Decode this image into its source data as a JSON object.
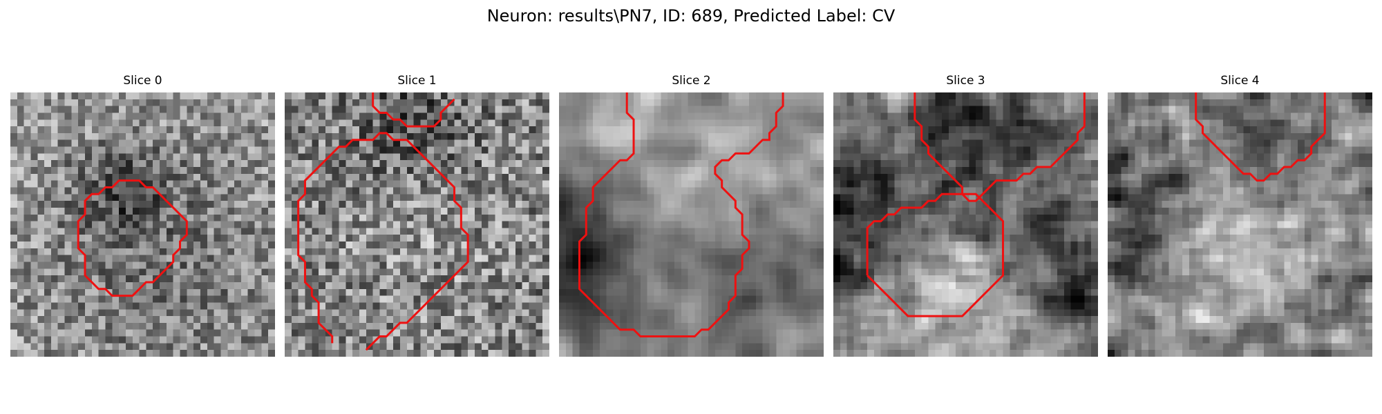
{
  "figure": {
    "suptitle": "Neuron: results\\PN7, ID: 689, Predicted Label: CV",
    "colormap": "gray",
    "contour_color": "#ee1111",
    "panels": [
      {
        "title": "Slice 0",
        "contours": [
          [
            [
              11.5,
              27.5
            ],
            [
              10.5,
              26.5
            ],
            [
              10.5,
              23.5
            ],
            [
              9.5,
              22.5
            ],
            [
              9.5,
              18.5
            ],
            [
              10.5,
              17.5
            ],
            [
              10.5,
              15.5
            ],
            [
              11.5,
              14.5
            ],
            [
              12.5,
              14.5
            ],
            [
              13.5,
              13.5
            ],
            [
              14.5,
              13.5
            ],
            [
              15.5,
              12.5
            ],
            [
              18.5,
              12.5
            ],
            [
              19.5,
              13.5
            ],
            [
              20.5,
              13.5
            ],
            [
              21.5,
              14.5
            ],
            [
              22.5,
              15.5
            ],
            [
              23.5,
              16.5
            ],
            [
              24.5,
              17.5
            ],
            [
              25.5,
              18.5
            ],
            [
              25.5,
              20.5
            ],
            [
              24.5,
              21.5
            ],
            [
              24.5,
              22.5
            ],
            [
              23.5,
              23.5
            ],
            [
              23.5,
              24.5
            ],
            [
              22.5,
              25.5
            ],
            [
              21.5,
              26.5
            ],
            [
              20.5,
              27.5
            ],
            [
              19.5,
              27.5
            ],
            [
              18.5,
              28.5
            ],
            [
              17.5,
              29.5
            ],
            [
              14.5,
              29.5
            ],
            [
              13.5,
              28.5
            ],
            [
              12.5,
              28.5
            ],
            [
              11.5,
              27.5
            ]
          ]
        ]
      },
      {
        "title": "Slice 1",
        "contours": [
          [
            [
              6.5,
              36.5
            ],
            [
              6.5,
              35.5
            ],
            [
              5.5,
              34.5
            ],
            [
              4.5,
              33.5
            ],
            [
              4.5,
              30.5
            ],
            [
              3.5,
              29.5
            ],
            [
              3.5,
              28.5
            ],
            [
              2.5,
              27.5
            ],
            [
              2.5,
              24.5
            ],
            [
              1.5,
              23.5
            ],
            [
              1.5,
              15.5
            ],
            [
              2.5,
              14.5
            ],
            [
              2.5,
              12.5
            ],
            [
              3.5,
              11.5
            ],
            [
              4.5,
              10.5
            ],
            [
              5.5,
              9.5
            ],
            [
              6.5,
              8.5
            ],
            [
              7.5,
              7.5
            ],
            [
              8.5,
              7.5
            ],
            [
              9.5,
              6.5
            ],
            [
              12.5,
              6.5
            ],
            [
              13.5,
              5.5
            ],
            [
              14.5,
              5.5
            ],
            [
              15.5,
              6.5
            ],
            [
              17.5,
              6.5
            ],
            [
              18.5,
              7.5
            ],
            [
              19.5,
              8.5
            ],
            [
              20.5,
              9.5
            ],
            [
              21.5,
              10.5
            ],
            [
              22.5,
              11.5
            ],
            [
              23.5,
              12.5
            ],
            [
              24.5,
              13.5
            ],
            [
              24.5,
              15.5
            ],
            [
              25.5,
              16.5
            ],
            [
              25.5,
              19.5
            ],
            [
              26.5,
              20.5
            ],
            [
              26.5,
              24.5
            ],
            [
              25.5,
              25.5
            ],
            [
              24.5,
              26.5
            ],
            [
              23.5,
              27.5
            ],
            [
              22.5,
              28.5
            ],
            [
              21.5,
              29.5
            ],
            [
              20.5,
              30.5
            ],
            [
              19.5,
              31.5
            ],
            [
              18.5,
              32.5
            ],
            [
              17.5,
              33.5
            ],
            [
              16.5,
              33.5
            ],
            [
              15.5,
              34.5
            ],
            [
              14.5,
              35.5
            ],
            [
              13.5,
              35.5
            ],
            [
              12.5,
              36.5
            ],
            [
              11.5,
              37.5
            ]
          ],
          [
            [
              12.5,
              -0.5
            ],
            [
              12.5,
              1.5
            ],
            [
              13.5,
              2.5
            ],
            [
              14.5,
              2.5
            ],
            [
              15.5,
              3.5
            ],
            [
              16.5,
              3.5
            ],
            [
              17.5,
              4.5
            ],
            [
              21.5,
              4.5
            ],
            [
              22.5,
              3.5
            ],
            [
              22.5,
              2.5
            ],
            [
              23.5,
              1.5
            ],
            [
              24.5,
              0.5
            ]
          ]
        ]
      },
      {
        "title": "Slice 2",
        "contours": [
          [
            [
              9.5,
              -0.5
            ],
            [
              9.5,
              2.5
            ],
            [
              10.5,
              3.5
            ],
            [
              10.5,
              8.5
            ],
            [
              9.5,
              9.5
            ],
            [
              8.5,
              9.5
            ],
            [
              7.5,
              10.5
            ],
            [
              6.5,
              11.5
            ],
            [
              5.5,
              12.5
            ],
            [
              4.5,
              13.5
            ],
            [
              4.5,
              15.5
            ],
            [
              3.5,
              16.5
            ],
            [
              3.5,
              20.5
            ],
            [
              2.5,
              21.5
            ],
            [
              2.5,
              28.5
            ],
            [
              3.5,
              29.5
            ],
            [
              4.5,
              30.5
            ],
            [
              5.5,
              31.5
            ],
            [
              6.5,
              32.5
            ],
            [
              7.5,
              33.5
            ],
            [
              8.5,
              34.5
            ],
            [
              10.5,
              34.5
            ],
            [
              11.5,
              35.5
            ],
            [
              19.5,
              35.5
            ],
            [
              20.5,
              34.5
            ],
            [
              21.5,
              34.5
            ],
            [
              22.5,
              33.5
            ],
            [
              23.5,
              32.5
            ],
            [
              24.5,
              31.5
            ],
            [
              24.5,
              30.5
            ],
            [
              25.5,
              29.5
            ],
            [
              25.5,
              26.5
            ],
            [
              26.5,
              25.5
            ],
            [
              26.5,
              23.5
            ],
            [
              27.5,
              22.5
            ],
            [
              27.5,
              21.5
            ],
            [
              26.5,
              20.5
            ],
            [
              26.5,
              17.5
            ],
            [
              25.5,
              16.5
            ],
            [
              25.5,
              15.5
            ],
            [
              24.5,
              14.5
            ],
            [
              23.5,
              13.5
            ],
            [
              23.5,
              12.5
            ],
            [
              22.5,
              11.5
            ],
            [
              22.5,
              10.5
            ],
            [
              23.5,
              9.5
            ],
            [
              24.5,
              9.5
            ],
            [
              25.5,
              8.5
            ],
            [
              27.5,
              8.5
            ],
            [
              28.5,
              7.5
            ],
            [
              29.5,
              6.5
            ],
            [
              30.5,
              6.5
            ],
            [
              30.5,
              5.5
            ],
            [
              31.5,
              4.5
            ],
            [
              31.5,
              2.5
            ],
            [
              32.5,
              1.5
            ],
            [
              32.5,
              -0.5
            ]
          ]
        ]
      },
      {
        "title": "Slice 3",
        "contours": [
          [
            [
              11.5,
              -0.5
            ],
            [
              11.5,
              3.5
            ],
            [
              12.5,
              4.5
            ],
            [
              12.5,
              6.5
            ],
            [
              13.5,
              7.5
            ],
            [
              13.5,
              8.5
            ],
            [
              14.5,
              9.5
            ],
            [
              15.5,
              10.5
            ],
            [
              16.5,
              11.5
            ],
            [
              17.5,
              12.5
            ],
            [
              18.5,
              13.5
            ],
            [
              18.5,
              14.5
            ],
            [
              19.5,
              15.5
            ],
            [
              20.5,
              15.5
            ],
            [
              21.5,
              14.5
            ],
            [
              22.5,
              13.5
            ],
            [
              23.5,
              12.5
            ],
            [
              26.5,
              12.5
            ],
            [
              27.5,
              11.5
            ],
            [
              28.5,
              11.5
            ],
            [
              29.5,
              10.5
            ],
            [
              31.5,
              10.5
            ],
            [
              32.5,
              9.5
            ],
            [
              33.5,
              8.5
            ],
            [
              34.5,
              7.5
            ],
            [
              35.5,
              6.5
            ],
            [
              35.5,
              5.5
            ],
            [
              36.5,
              4.5
            ],
            [
              36.5,
              -0.5
            ]
          ],
          [
            [
              4.5,
              26.5
            ],
            [
              4.5,
              19.5
            ],
            [
              5.5,
              18.5
            ],
            [
              6.5,
              18.5
            ],
            [
              7.5,
              17.5
            ],
            [
              8.5,
              17.5
            ],
            [
              9.5,
              16.5
            ],
            [
              12.5,
              16.5
            ],
            [
              13.5,
              15.5
            ],
            [
              14.5,
              15.5
            ],
            [
              15.5,
              14.5
            ],
            [
              20.5,
              14.5
            ],
            [
              21.5,
              15.5
            ],
            [
              22.5,
              16.5
            ],
            [
              23.5,
              17.5
            ],
            [
              24.5,
              18.5
            ],
            [
              24.5,
              26.5
            ],
            [
              23.5,
              27.5
            ],
            [
              22.5,
              28.5
            ],
            [
              21.5,
              29.5
            ],
            [
              20.5,
              30.5
            ],
            [
              19.5,
              31.5
            ],
            [
              18.5,
              32.5
            ],
            [
              10.5,
              32.5
            ],
            [
              9.5,
              31.5
            ],
            [
              8.5,
              30.5
            ],
            [
              7.5,
              29.5
            ],
            [
              6.5,
              28.5
            ],
            [
              5.5,
              27.5
            ],
            [
              4.5,
              26.5
            ]
          ]
        ]
      },
      {
        "title": "Slice 4",
        "contours": [
          [
            [
              12.5,
              -0.5
            ],
            [
              12.5,
              3.5
            ],
            [
              13.5,
              4.5
            ],
            [
              13.5,
              5.5
            ],
            [
              14.5,
              6.5
            ],
            [
              15.5,
              7.5
            ],
            [
              16.5,
              8.5
            ],
            [
              17.5,
              9.5
            ],
            [
              18.5,
              10.5
            ],
            [
              19.5,
              11.5
            ],
            [
              20.5,
              11.5
            ],
            [
              21.5,
              12.5
            ],
            [
              22.5,
              12.5
            ],
            [
              23.5,
              11.5
            ],
            [
              24.5,
              11.5
            ],
            [
              25.5,
              10.5
            ],
            [
              26.5,
              10.5
            ],
            [
              27.5,
              9.5
            ],
            [
              28.5,
              9.5
            ],
            [
              29.5,
              8.5
            ],
            [
              29.5,
              7.5
            ],
            [
              30.5,
              6.5
            ],
            [
              31.5,
              5.5
            ],
            [
              31.5,
              -0.5
            ]
          ]
        ]
      }
    ]
  }
}
